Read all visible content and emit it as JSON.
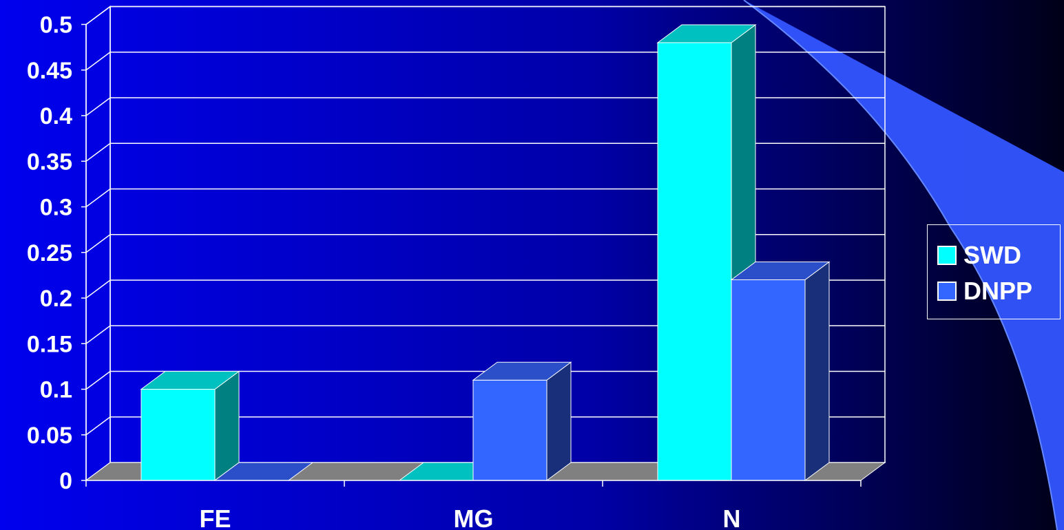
{
  "chart_data": {
    "type": "bar",
    "categories": [
      "FE",
      "MG",
      "N"
    ],
    "series": [
      {
        "name": "SWD",
        "values": [
          0.1,
          0.0,
          0.48
        ]
      },
      {
        "name": "DNPP",
        "values": [
          0.0,
          0.11,
          0.22
        ]
      }
    ],
    "ylim": [
      0,
      0.5
    ],
    "y_ticks": [
      "0",
      "0.05",
      "0.1",
      "0.15",
      "0.2",
      "0.25",
      "0.3",
      "0.35",
      "0.4",
      "0.45",
      "0.5"
    ],
    "title": "",
    "xlabel": "",
    "ylabel": "",
    "grid": true,
    "legend_position": "right",
    "style": "3d-clustered-column"
  },
  "colors": {
    "background_left": "#0000ee",
    "background_right": "#000018",
    "swoosh": "#3355ff",
    "swd_front": "#00ffff",
    "swd_top": "#00c0c0",
    "swd_side": "#008080",
    "dnpp_front": "#3366ff",
    "dnpp_top": "#2a4fc8",
    "dnpp_side": "#1a2f7a",
    "floor": "#808080",
    "gridline": "#ffffff",
    "text": "#ffffff"
  }
}
